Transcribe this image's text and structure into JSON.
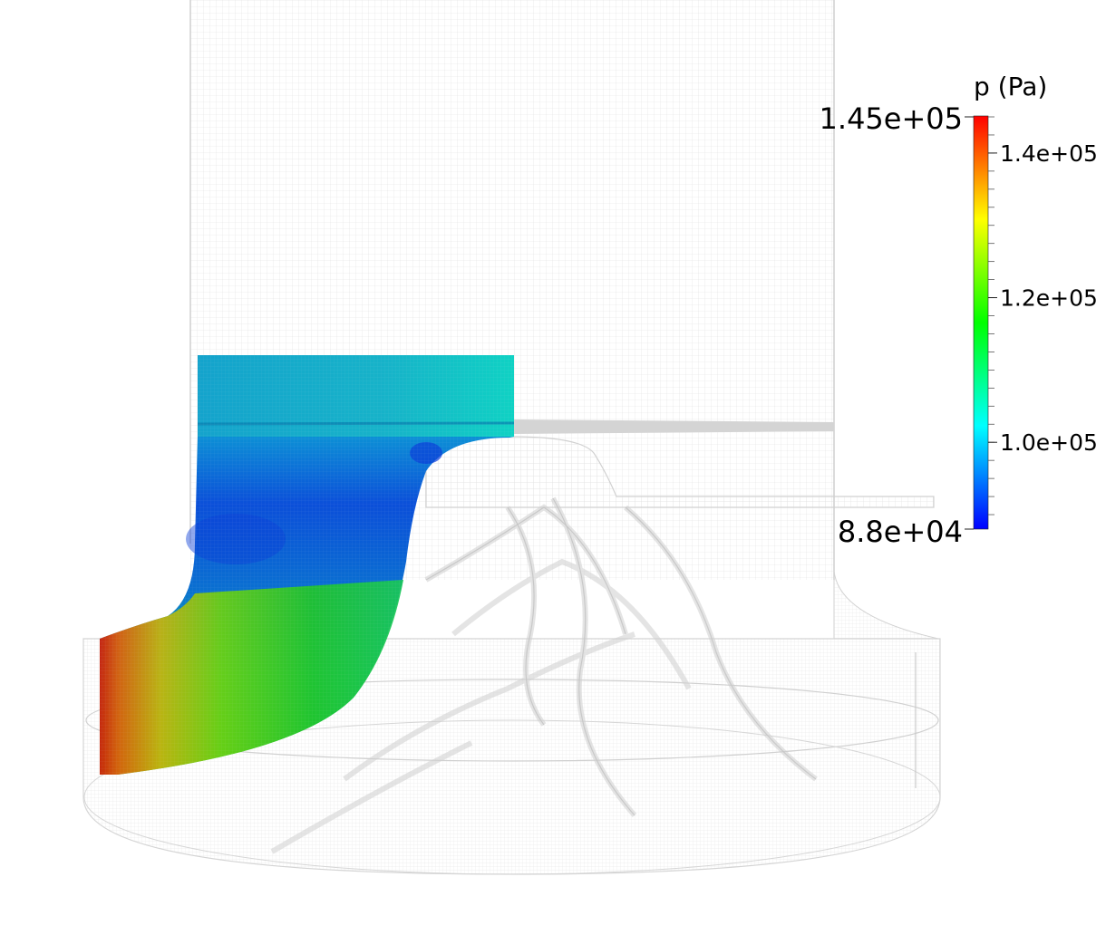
{
  "colorbar": {
    "title": "p (Pa)",
    "range_min_label": "8.8e+04",
    "range_max_label": "1.45e+05",
    "min": 88000,
    "max": 145000,
    "ticks": [
      {
        "value": 140000,
        "label": "1.4e+05"
      },
      {
        "value": 120000,
        "label": "1.2e+05"
      },
      {
        "value": 100000,
        "label": "1.0e+05"
      }
    ],
    "colormap": [
      "#0000ff",
      "#00ffff",
      "#00ff00",
      "#ffff00",
      "#ff0000"
    ]
  },
  "colors": {
    "mesh": "#d9d9d9",
    "background": "#ffffff"
  }
}
